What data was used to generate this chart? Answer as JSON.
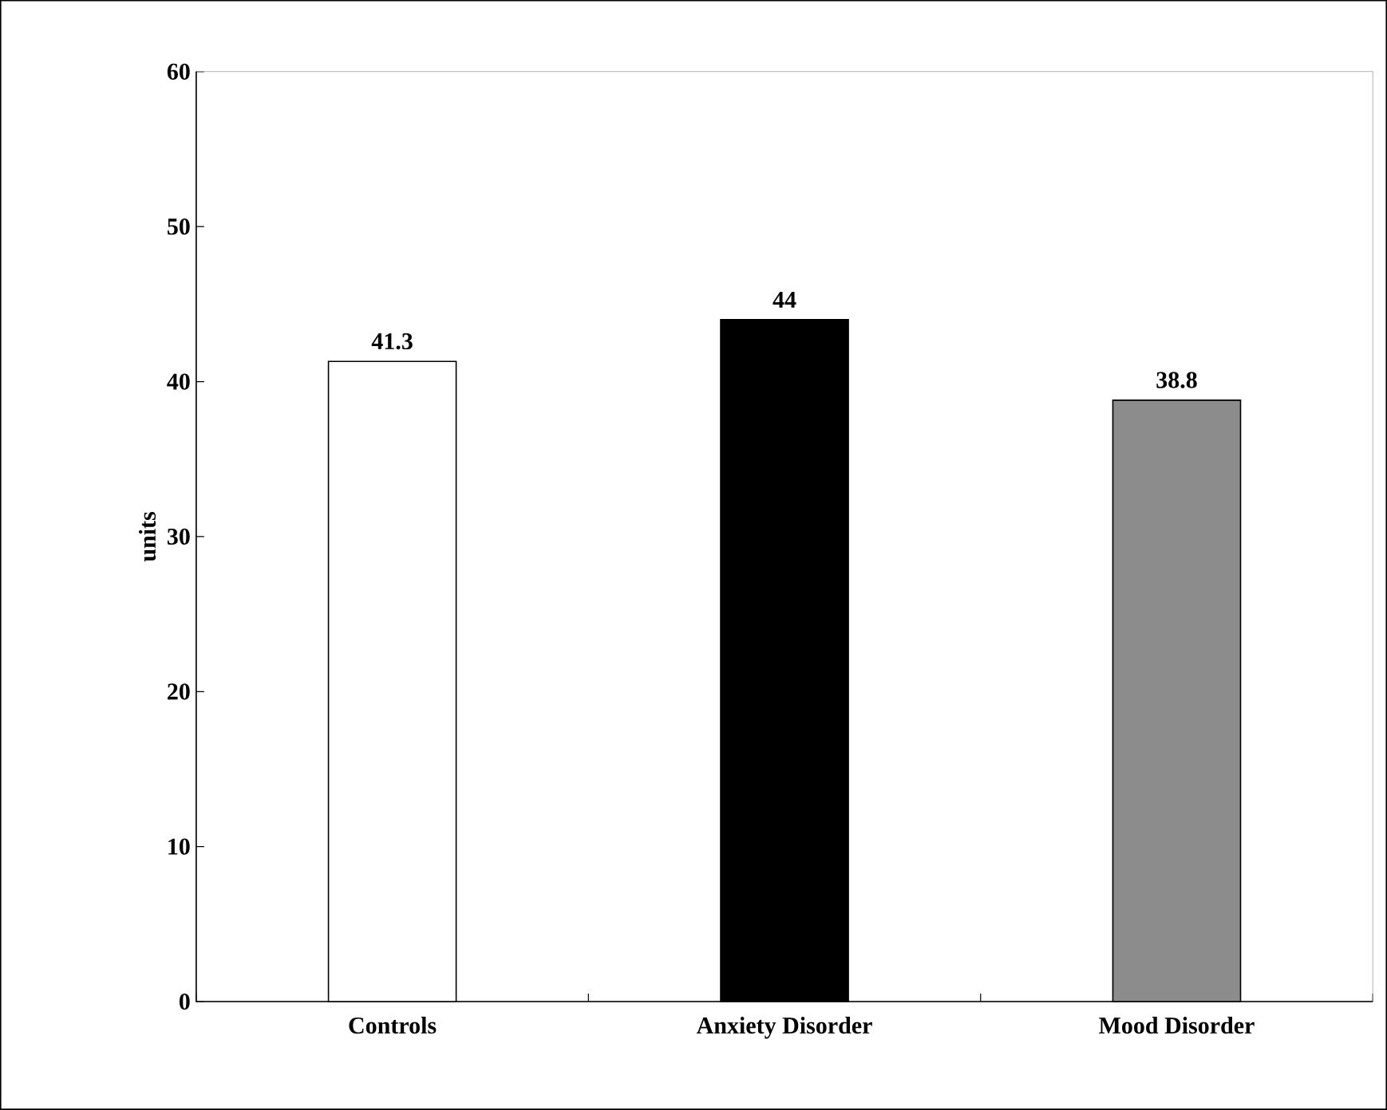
{
  "chart_data": {
    "type": "bar",
    "ylabel": "units",
    "categories": [
      "Controls",
      "Anxiety Disorder",
      "Mood Disorder"
    ],
    "values": [
      41.3,
      44,
      38.8
    ],
    "colors": [
      "#ffffff",
      "#000000",
      "#8c8c8c"
    ],
    "ylim": [
      0,
      60
    ],
    "yticks": [
      0,
      10,
      20,
      30,
      40,
      50,
      60
    ],
    "data_labels": true
  }
}
